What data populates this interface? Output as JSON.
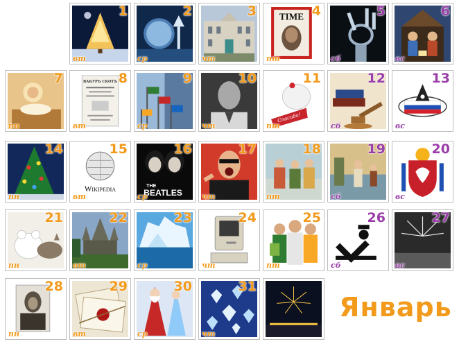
{
  "month_title": "Январь",
  "colors": {
    "weekday": "#f29a1c",
    "weekend": "#9a3fa8",
    "title": "#f29a1c"
  },
  "image_text": {
    "time_cover": "TIME",
    "wikipedia": "Wikipedia",
    "beatles_the": "THE",
    "beatles": "BEATLES",
    "book_title": "ВАКУРЪ СКОТЪ",
    "ribbon": "Спасибо!"
  },
  "days": [
    {
      "num": "1",
      "dow": "вт",
      "weekend": false
    },
    {
      "num": "2",
      "dow": "ср",
      "weekend": false
    },
    {
      "num": "3",
      "dow": "чт",
      "weekend": false
    },
    {
      "num": "4",
      "dow": "пт",
      "weekend": false
    },
    {
      "num": "5",
      "dow": "сб",
      "weekend": true
    },
    {
      "num": "6",
      "dow": "вс",
      "weekend": true
    },
    {
      "num": "7",
      "dow": "пн",
      "weekend": false
    },
    {
      "num": "8",
      "dow": "вт",
      "weekend": false
    },
    {
      "num": "9",
      "dow": "ср",
      "weekend": false
    },
    {
      "num": "10",
      "dow": "чт",
      "weekend": false
    },
    {
      "num": "11",
      "dow": "пт",
      "weekend": false
    },
    {
      "num": "12",
      "dow": "сб",
      "weekend": true
    },
    {
      "num": "13",
      "dow": "вс",
      "weekend": true
    },
    {
      "num": "14",
      "dow": "пн",
      "weekend": false
    },
    {
      "num": "15",
      "dow": "вт",
      "weekend": false
    },
    {
      "num": "16",
      "dow": "ср",
      "weekend": false
    },
    {
      "num": "17",
      "dow": "чт",
      "weekend": false
    },
    {
      "num": "18",
      "dow": "пт",
      "weekend": false
    },
    {
      "num": "19",
      "dow": "сб",
      "weekend": true
    },
    {
      "num": "20",
      "dow": "вс",
      "weekend": true
    },
    {
      "num": "21",
      "dow": "пн",
      "weekend": false
    },
    {
      "num": "22",
      "dow": "вт",
      "weekend": false
    },
    {
      "num": "23",
      "dow": "ср",
      "weekend": false
    },
    {
      "num": "24",
      "dow": "чт",
      "weekend": false
    },
    {
      "num": "25",
      "dow": "пт",
      "weekend": false
    },
    {
      "num": "26",
      "dow": "сб",
      "weekend": true
    },
    {
      "num": "27",
      "dow": "вс",
      "weekend": true
    },
    {
      "num": "28",
      "dow": "пн",
      "weekend": false
    },
    {
      "num": "29",
      "dow": "вт",
      "weekend": false
    },
    {
      "num": "30",
      "dow": "ср",
      "weekend": false
    },
    {
      "num": "31",
      "dow": "чт",
      "weekend": false
    }
  ]
}
